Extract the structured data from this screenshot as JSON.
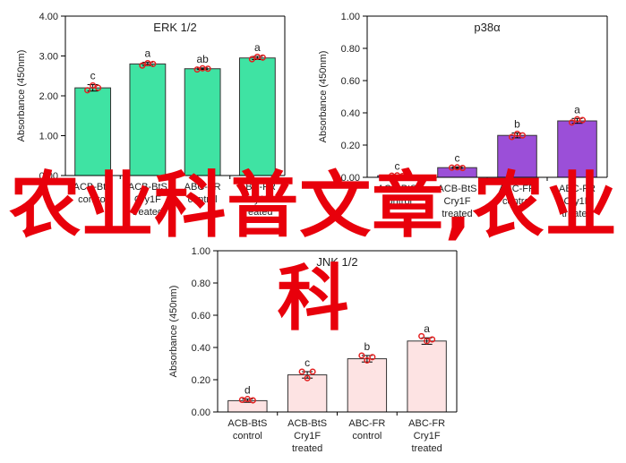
{
  "chart_data": [
    {
      "type": "bar",
      "title": "ERK 1/2",
      "y_label": "Absorbance (450nm)",
      "categories": [
        "ACB-BtS control",
        "ACB-BtS Cry1F treated",
        "ABC-FR control",
        "ABC-FR Cry1F treated"
      ],
      "values": [
        2.2,
        2.8,
        2.68,
        2.95
      ],
      "errors": [
        0.08,
        0.04,
        0.02,
        0.04
      ],
      "points": [
        [
          2.14,
          2.26,
          2.2
        ],
        [
          2.76,
          2.82,
          2.8
        ],
        [
          2.66,
          2.69,
          2.68
        ],
        [
          2.92,
          2.98,
          2.96
        ]
      ],
      "value_labels": [
        "c",
        "a",
        "ab",
        "a"
      ],
      "color": "#3fe3a3",
      "ylim": [
        0,
        4
      ],
      "yticks": [
        {
          "value": 0,
          "label": "0.00"
        },
        {
          "value": 1,
          "label": "1.00"
        },
        {
          "value": 2,
          "label": "2.00"
        },
        {
          "value": 3,
          "label": "3.00"
        },
        {
          "value": 4,
          "label": "4.00"
        }
      ]
    },
    {
      "type": "bar",
      "title": "p38α",
      "y_label": "Absorbance (450nm)",
      "categories": [
        "ACB-BtS control",
        "ACB-BtS Cry1F treated",
        "ABC-FR control",
        "ABC-FR Cry1F treated"
      ],
      "values": [
        0.01,
        0.06,
        0.26,
        0.35
      ],
      "errors": [
        0.005,
        0.005,
        0.015,
        0.015
      ],
      "points": [
        [
          0.01,
          0.012,
          0.008
        ],
        [
          0.06,
          0.062,
          0.058
        ],
        [
          0.25,
          0.27,
          0.26
        ],
        [
          0.34,
          0.36,
          0.355
        ]
      ],
      "value_labels": [
        "c",
        "c",
        "b",
        "a"
      ],
      "color": "#9b4fd8",
      "ylim": [
        0,
        1
      ],
      "yticks": [
        {
          "value": 0,
          "label": "0.00"
        },
        {
          "value": 0.2,
          "label": "0.20"
        },
        {
          "value": 0.4,
          "label": "0.40"
        },
        {
          "value": 0.6,
          "label": "0.60"
        },
        {
          "value": 0.8,
          "label": "0.80"
        },
        {
          "value": 1,
          "label": "1.00"
        }
      ]
    },
    {
      "type": "bar",
      "title": "JNK 1/2",
      "y_label": "Absorbance (450nm)",
      "categories": [
        "ACB-BtS control",
        "ACB-BtS Cry1F treated",
        "ABC-FR control",
        "ABC-FR Cry1F treated"
      ],
      "values": [
        0.07,
        0.23,
        0.33,
        0.44
      ],
      "errors": [
        0.01,
        0.02,
        0.02,
        0.02
      ],
      "points": [
        [
          0.075,
          0.08,
          0.072
        ],
        [
          0.25,
          0.21,
          0.25
        ],
        [
          0.35,
          0.32,
          0.34
        ],
        [
          0.47,
          0.44,
          0.45
        ]
      ],
      "value_labels": [
        "d",
        "c",
        "b",
        "a"
      ],
      "color": "#fde3e3",
      "ylim": [
        0,
        1
      ],
      "yticks": [
        {
          "value": 0,
          "label": "0.00"
        },
        {
          "value": 0.2,
          "label": "0.20"
        },
        {
          "value": 0.4,
          "label": "0.40"
        },
        {
          "value": 0.6,
          "label": "0.60"
        },
        {
          "value": 0.8,
          "label": "0.80"
        },
        {
          "value": 1,
          "label": "1.00"
        }
      ]
    }
  ],
  "overlay_text": "农业科普文章,农业科"
}
